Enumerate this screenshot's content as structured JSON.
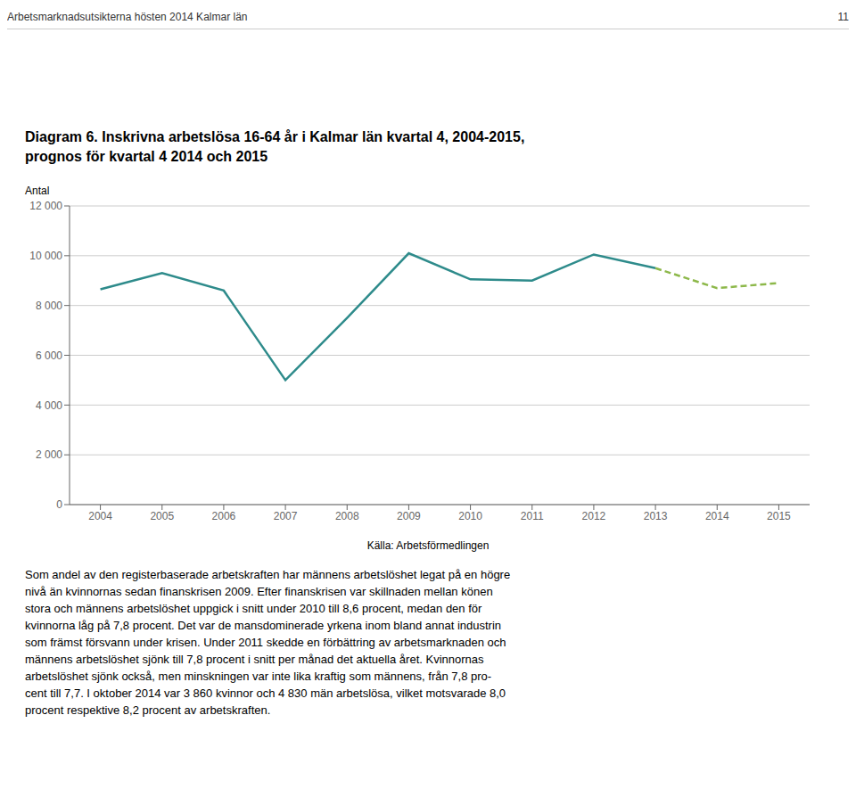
{
  "chart_data": {
    "type": "line",
    "title": "Diagram 6. Inskrivna arbetslösa 16-64 år i Kalmar län kvartal 4, 2004-2015,",
    "subtitle": "prognos för kvartal 4 2014 och 2015",
    "y_label": "Antal",
    "annotations": [
      "Arbetsmarknadsutsikterna hösten 2014 Kalmar län",
      "11",
      "Källa: Arbetsförmedlingen",
      "Som andel av den registerbaserade arbetskraften har männens arbetslöshet legat på en högre\nnivå än kvinnornas sedan finanskrisen 2009. Efter finanskrisen var skillnaden mellan könen\nstora och männens arbetslöshet uppgick i snitt under 2⁠010 till 8,6 procent, medan den för\nkvinnorna låg på 7,8 procent. Det var de mansdominerade yrkena inom bland annat industrin\nsom främst försvann under krisen. Under 2⁠011 skedde en förbättring av arbetsmarknaden och\nmännens arbetslöshet sjönk till 7,8 procent i snitt per månad det aktuella året. Kvinnornas\narbetslöshet sjönk också, men minskningen var inte lika kraftig som männens, från 7,8 pro-\ncent till 7,7. I oktober 2014 var 3 860 kvinnor och 4 830 män arbetslösa, vilket motsvarade 8,0\nprocent respektive 8,2 procent av arbetskraften."
    ],
    "x": [
      2004,
      2005,
      2006,
      2007,
      2008,
      2009,
      2010,
      2011,
      2012,
      2013,
      2014,
      2015
    ],
    "series": [
      {
        "color": "#2e8b8b",
        "line_style": "solid",
        "values": [
          8650,
          9300,
          8600,
          5000,
          7500,
          10100,
          9050,
          9000,
          10050,
          9500,
          null,
          null
        ]
      },
      {
        "color": "#8db84a",
        "line_style": "dashed",
        "values": [
          null,
          null,
          null,
          null,
          null,
          null,
          null,
          null,
          null,
          9500,
          8700,
          8900
        ]
      }
    ],
    "xlim": [
      2003.5,
      2015.5
    ],
    "xticks": [
      2004,
      2005,
      2006,
      2007,
      2008,
      2009,
      2010,
      2011,
      2012,
      2013,
      2014,
      2015
    ],
    "ylim": [
      0,
      12000
    ],
    "yticks": [
      0,
      {
        "value": 2000,
        "label": "2 000"
      },
      {
        "value": 4000,
        "label": "4 000"
      },
      {
        "value": 6000,
        "label": "6 000"
      },
      {
        "value": 8000,
        "label": "8 000"
      },
      {
        "value": 10000,
        "label": "10 000"
      },
      {
        "value": 12000,
        "label": "12 000"
      }
    ],
    "grid": true
  }
}
